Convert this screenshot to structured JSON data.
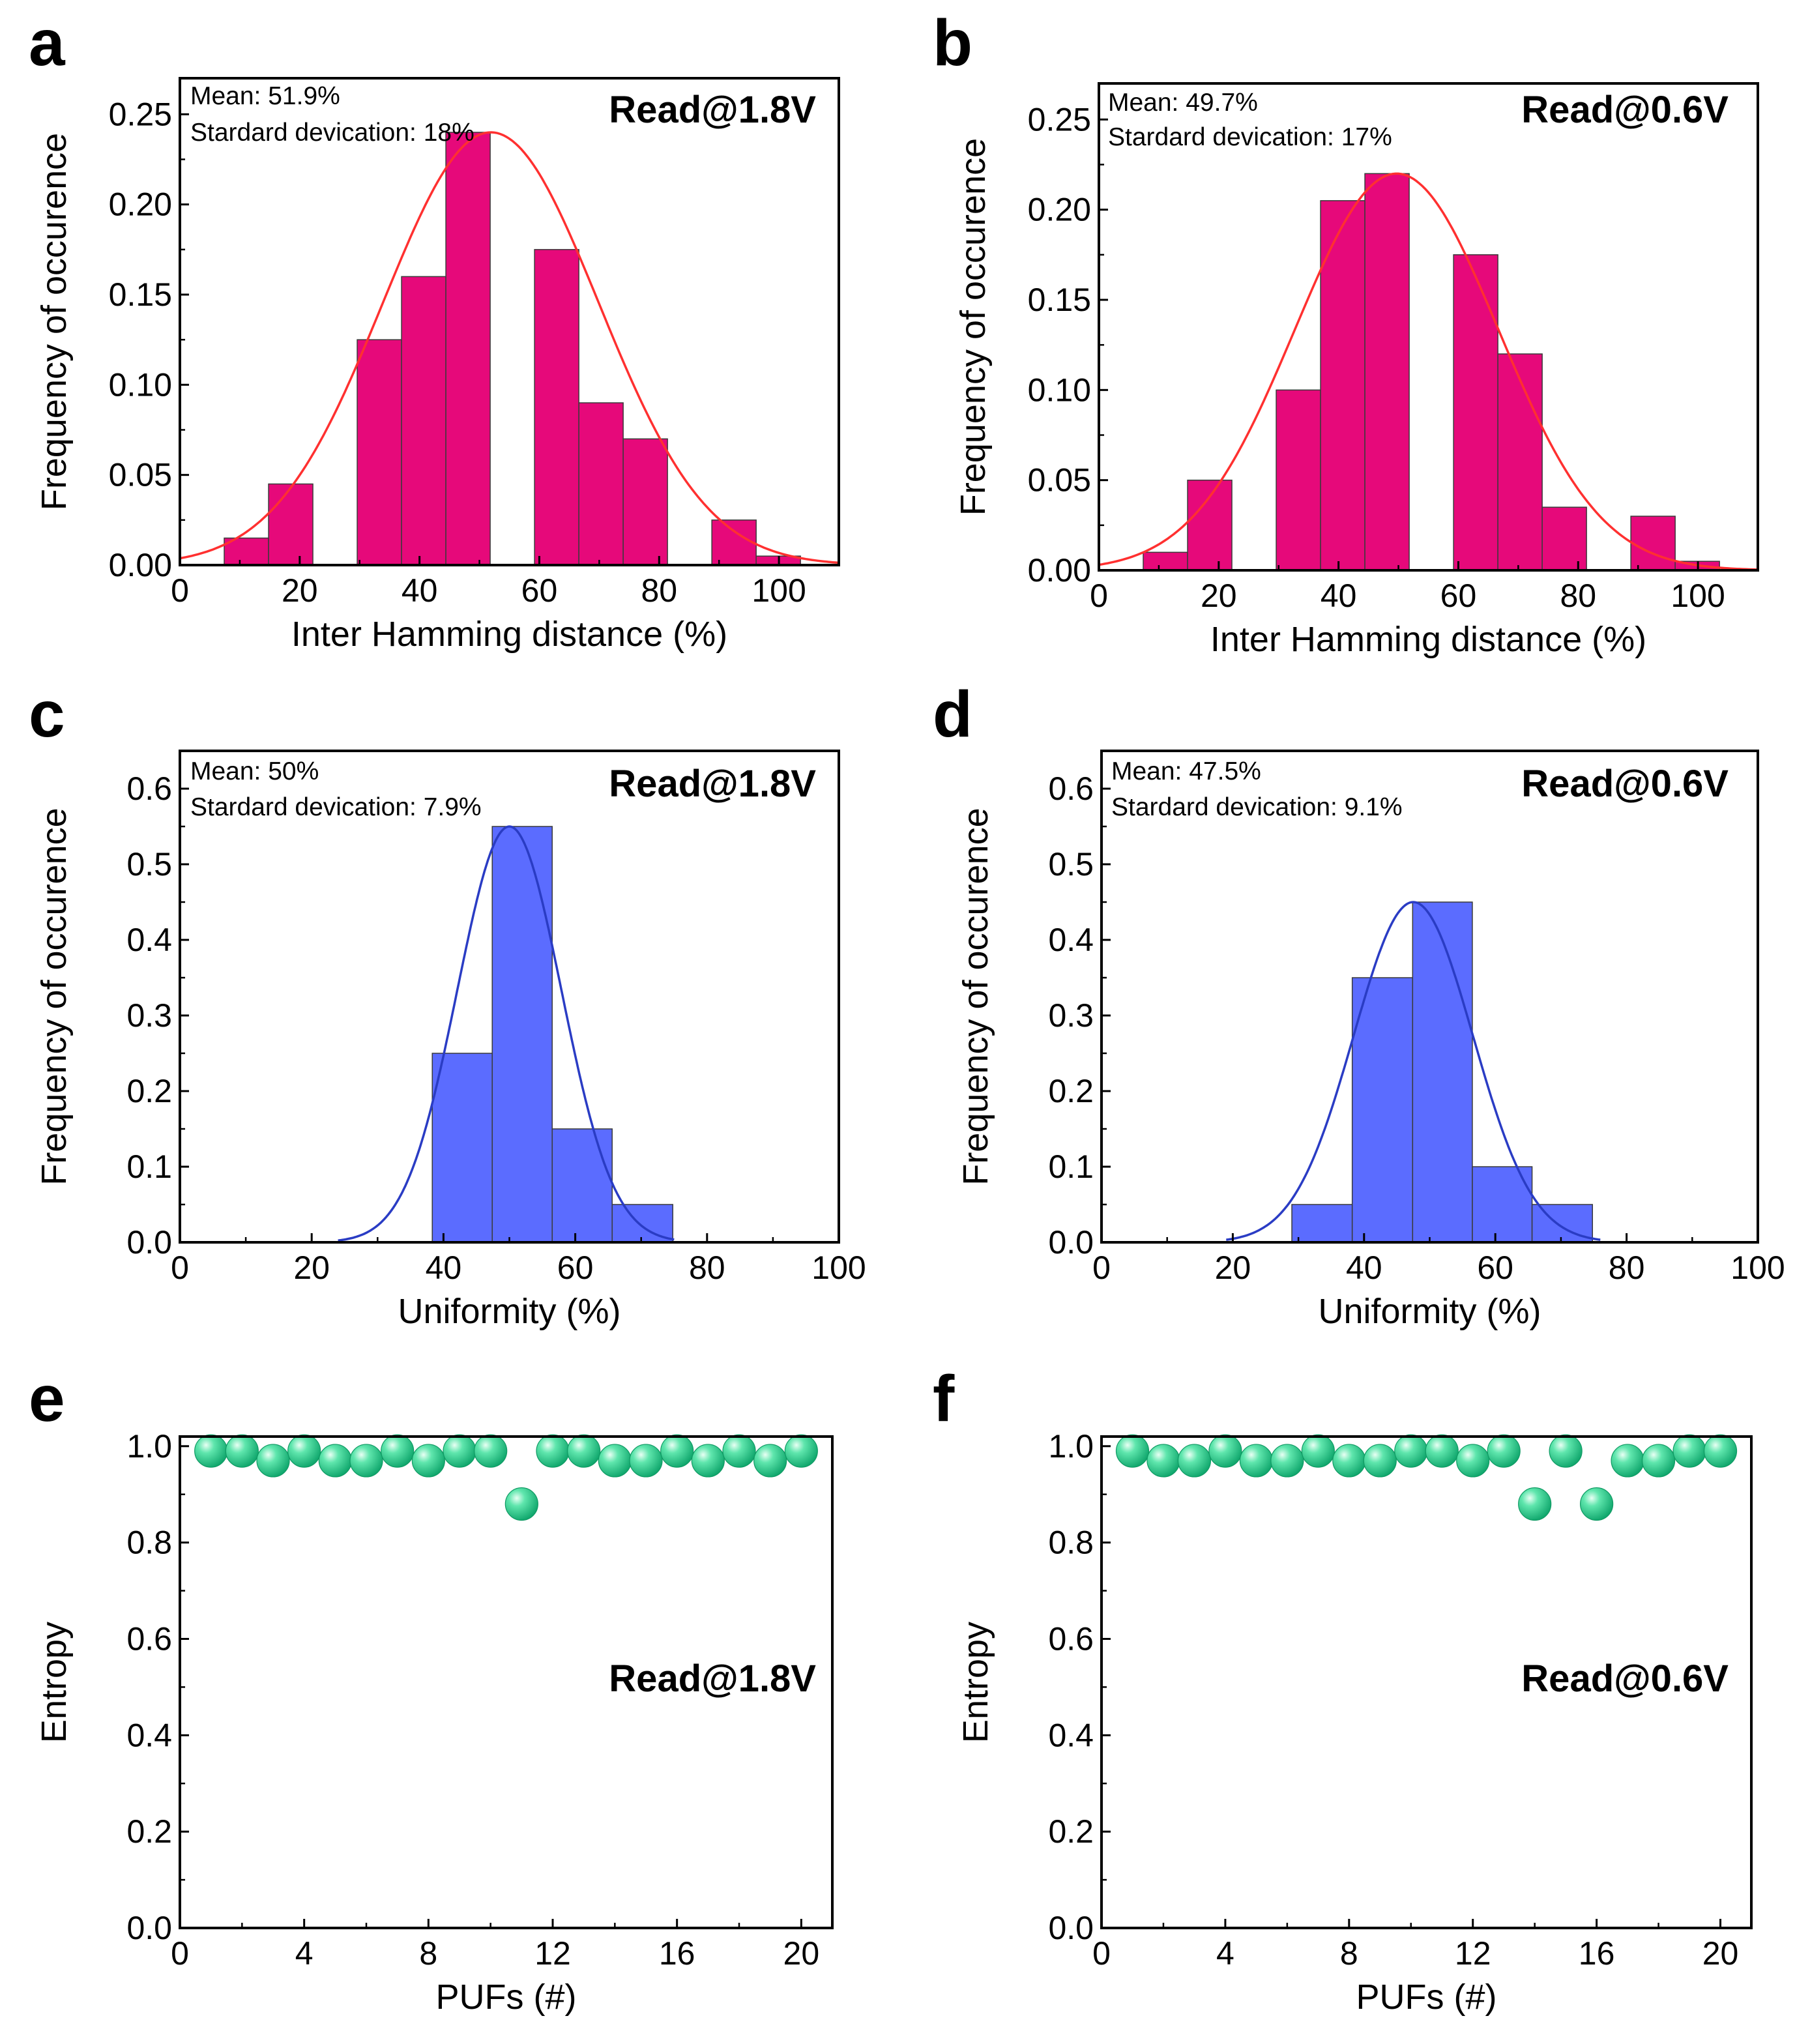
{
  "figure": {
    "panels": [
      "a",
      "b",
      "c",
      "d",
      "e",
      "f"
    ]
  },
  "chart_data": [
    {
      "id": "a",
      "type": "bar",
      "panel_label": "a",
      "title": "Read@1.8V",
      "annotation_lines": [
        "Mean: 51.9%",
        "Stardard devication: 18%"
      ],
      "xlabel": "Inter Hamming distance (%)",
      "ylabel": "Frequency of occurence",
      "xlim": [
        0,
        110
      ],
      "ylim": [
        0,
        0.27
      ],
      "xticks": [
        0,
        20,
        40,
        60,
        80,
        100
      ],
      "xtick_labels": [
        "0",
        "20",
        "40",
        "60",
        "80",
        "100"
      ],
      "yticks": [
        0,
        0.05,
        0.1,
        0.15,
        0.2,
        0.25
      ],
      "ytick_labels": [
        "0.00",
        "0.05",
        "0.10",
        "0.15",
        "0.20",
        "0.25"
      ],
      "bar_color": "#e6097a",
      "bins": [
        {
          "start": 7.4,
          "end": 14.8,
          "value": 0.015
        },
        {
          "start": 14.8,
          "end": 22.2,
          "value": 0.045
        },
        {
          "start": 22.2,
          "end": 29.6,
          "value": 0.0
        },
        {
          "start": 29.6,
          "end": 37.0,
          "value": 0.125
        },
        {
          "start": 37.0,
          "end": 44.4,
          "value": 0.16
        },
        {
          "start": 44.4,
          "end": 51.8,
          "value": 0.24
        },
        {
          "start": 51.8,
          "end": 59.2,
          "value": 0.0
        },
        {
          "start": 59.2,
          "end": 66.6,
          "value": 0.175
        },
        {
          "start": 66.6,
          "end": 74.0,
          "value": 0.09
        },
        {
          "start": 74.0,
          "end": 81.4,
          "value": 0.07
        },
        {
          "start": 81.4,
          "end": 88.8,
          "value": 0.0
        },
        {
          "start": 88.8,
          "end": 96.2,
          "value": 0.025
        },
        {
          "start": 96.2,
          "end": 103.6,
          "value": 0.005
        }
      ],
      "fit": {
        "color": "#ff3030",
        "mean": 51.9,
        "sd": 18,
        "peak": 0.24,
        "x_range": [
          0,
          110
        ]
      }
    },
    {
      "id": "b",
      "type": "bar",
      "panel_label": "b",
      "title": "Read@0.6V",
      "annotation_lines": [
        "Mean: 49.7%",
        "Stardard devication: 17%"
      ],
      "xlabel": "Inter Hamming distance (%)",
      "ylabel": "Frequency of occurence",
      "xlim": [
        0,
        110
      ],
      "ylim": [
        0,
        0.27
      ],
      "xticks": [
        0,
        20,
        40,
        60,
        80,
        100
      ],
      "xtick_labels": [
        "0",
        "20",
        "40",
        "60",
        "80",
        "100"
      ],
      "yticks": [
        0,
        0.05,
        0.1,
        0.15,
        0.2,
        0.25
      ],
      "ytick_labels": [
        "0.00",
        "0.05",
        "0.10",
        "0.15",
        "0.20",
        "0.25"
      ],
      "bar_color": "#e6097a",
      "bins": [
        {
          "start": 7.4,
          "end": 14.8,
          "value": 0.01
        },
        {
          "start": 14.8,
          "end": 22.2,
          "value": 0.05
        },
        {
          "start": 22.2,
          "end": 29.6,
          "value": 0.0
        },
        {
          "start": 29.6,
          "end": 37.0,
          "value": 0.1
        },
        {
          "start": 37.0,
          "end": 44.4,
          "value": 0.205
        },
        {
          "start": 44.4,
          "end": 51.8,
          "value": 0.22
        },
        {
          "start": 51.8,
          "end": 59.2,
          "value": 0.0
        },
        {
          "start": 59.2,
          "end": 66.6,
          "value": 0.175
        },
        {
          "start": 66.6,
          "end": 74.0,
          "value": 0.12
        },
        {
          "start": 74.0,
          "end": 81.4,
          "value": 0.035
        },
        {
          "start": 81.4,
          "end": 88.8,
          "value": 0.0
        },
        {
          "start": 88.8,
          "end": 96.2,
          "value": 0.03
        },
        {
          "start": 96.2,
          "end": 103.6,
          "value": 0.005
        }
      ],
      "fit": {
        "color": "#ff3030",
        "mean": 49.7,
        "sd": 17,
        "peak": 0.22,
        "x_range": [
          0,
          110
        ]
      }
    },
    {
      "id": "c",
      "type": "bar",
      "panel_label": "c",
      "title": "Read@1.8V",
      "annotation_lines": [
        "Mean: 50%",
        "Stardard devication: 7.9%"
      ],
      "xlabel": "Uniformity (%)",
      "ylabel": "Frequency of occurence",
      "xlim": [
        0,
        100
      ],
      "ylim": [
        0,
        0.65
      ],
      "xticks": [
        0,
        20,
        40,
        60,
        80,
        100
      ],
      "xtick_labels": [
        "0",
        "20",
        "40",
        "60",
        "80",
        "100"
      ],
      "yticks": [
        0,
        0.1,
        0.2,
        0.3,
        0.4,
        0.5,
        0.6
      ],
      "ytick_labels": [
        "0.0",
        "0.1",
        "0.2",
        "0.3",
        "0.4",
        "0.5",
        "0.6"
      ],
      "bar_color": "#5b6cff",
      "bins": [
        {
          "start": 38.3,
          "end": 47.4,
          "value": 0.25
        },
        {
          "start": 47.4,
          "end": 56.5,
          "value": 0.55
        },
        {
          "start": 56.5,
          "end": 65.6,
          "value": 0.15
        },
        {
          "start": 65.6,
          "end": 74.8,
          "value": 0.05
        }
      ],
      "fit": {
        "color": "#2a3cc4",
        "mean": 50,
        "sd": 7.9,
        "peak": 0.55,
        "x_range": [
          24,
          75
        ]
      }
    },
    {
      "id": "d",
      "type": "bar",
      "panel_label": "d",
      "title": "Read@0.6V",
      "annotation_lines": [
        "Mean: 47.5%",
        "Stardard devication: 9.1%"
      ],
      "xlabel": "Uniformity (%)",
      "ylabel": "Frequency of occurence",
      "xlim": [
        0,
        100
      ],
      "ylim": [
        0,
        0.65
      ],
      "xticks": [
        0,
        20,
        40,
        60,
        80,
        100
      ],
      "xtick_labels": [
        "0",
        "20",
        "40",
        "60",
        "80",
        "100"
      ],
      "yticks": [
        0,
        0.1,
        0.2,
        0.3,
        0.4,
        0.5,
        0.6
      ],
      "ytick_labels": [
        "0.0",
        "0.1",
        "0.2",
        "0.3",
        "0.4",
        "0.5",
        "0.6"
      ],
      "bar_color": "#5b6cff",
      "bins": [
        {
          "start": 29.0,
          "end": 38.2,
          "value": 0.05
        },
        {
          "start": 38.2,
          "end": 47.4,
          "value": 0.35
        },
        {
          "start": 47.4,
          "end": 56.5,
          "value": 0.45
        },
        {
          "start": 56.5,
          "end": 65.6,
          "value": 0.1
        },
        {
          "start": 65.6,
          "end": 74.8,
          "value": 0.05
        }
      ],
      "fit": {
        "color": "#2a3cc4",
        "mean": 47.5,
        "sd": 9.1,
        "peak": 0.45,
        "x_range": [
          19,
          76
        ]
      }
    },
    {
      "id": "e",
      "type": "scatter",
      "panel_label": "e",
      "title": "Read@1.8V",
      "xlabel": "PUFs (#)",
      "ylabel": "Entropy",
      "xlim": [
        0,
        21
      ],
      "ylim": [
        0,
        1.02
      ],
      "xticks": [
        0,
        4,
        8,
        12,
        16,
        20
      ],
      "xtick_labels": [
        "0",
        "4",
        "8",
        "12",
        "16",
        "20"
      ],
      "yticks": [
        0,
        0.2,
        0.4,
        0.6,
        0.8,
        1.0
      ],
      "ytick_labels": [
        "0.0",
        "0.2",
        "0.4",
        "0.6",
        "0.8",
        "1.0"
      ],
      "marker_color": "#22cc88",
      "x": [
        1,
        2,
        3,
        4,
        5,
        6,
        7,
        8,
        9,
        10,
        11,
        12,
        13,
        14,
        15,
        16,
        17,
        18,
        19,
        20
      ],
      "y": [
        0.99,
        0.99,
        0.97,
        0.99,
        0.97,
        0.97,
        0.99,
        0.97,
        0.99,
        0.99,
        0.88,
        0.99,
        0.99,
        0.97,
        0.97,
        0.99,
        0.97,
        0.99,
        0.97,
        0.99
      ]
    },
    {
      "id": "f",
      "type": "scatter",
      "panel_label": "f",
      "title": "Read@0.6V",
      "xlabel": "PUFs (#)",
      "ylabel": "Entropy",
      "xlim": [
        0,
        21
      ],
      "ylim": [
        0,
        1.02
      ],
      "xticks": [
        0,
        4,
        8,
        12,
        16,
        20
      ],
      "xtick_labels": [
        "0",
        "4",
        "8",
        "12",
        "16",
        "20"
      ],
      "yticks": [
        0,
        0.2,
        0.4,
        0.6,
        0.8,
        1.0
      ],
      "ytick_labels": [
        "0.0",
        "0.2",
        "0.4",
        "0.6",
        "0.8",
        "1.0"
      ],
      "marker_color": "#22cc88",
      "x": [
        1,
        2,
        3,
        4,
        5,
        6,
        7,
        8,
        9,
        10,
        11,
        12,
        13,
        14,
        15,
        16,
        17,
        18,
        19,
        20
      ],
      "y": [
        0.99,
        0.97,
        0.97,
        0.99,
        0.97,
        0.97,
        0.99,
        0.97,
        0.97,
        0.99,
        0.99,
        0.97,
        0.99,
        0.88,
        0.99,
        0.88,
        0.97,
        0.97,
        0.99,
        0.99
      ]
    }
  ]
}
